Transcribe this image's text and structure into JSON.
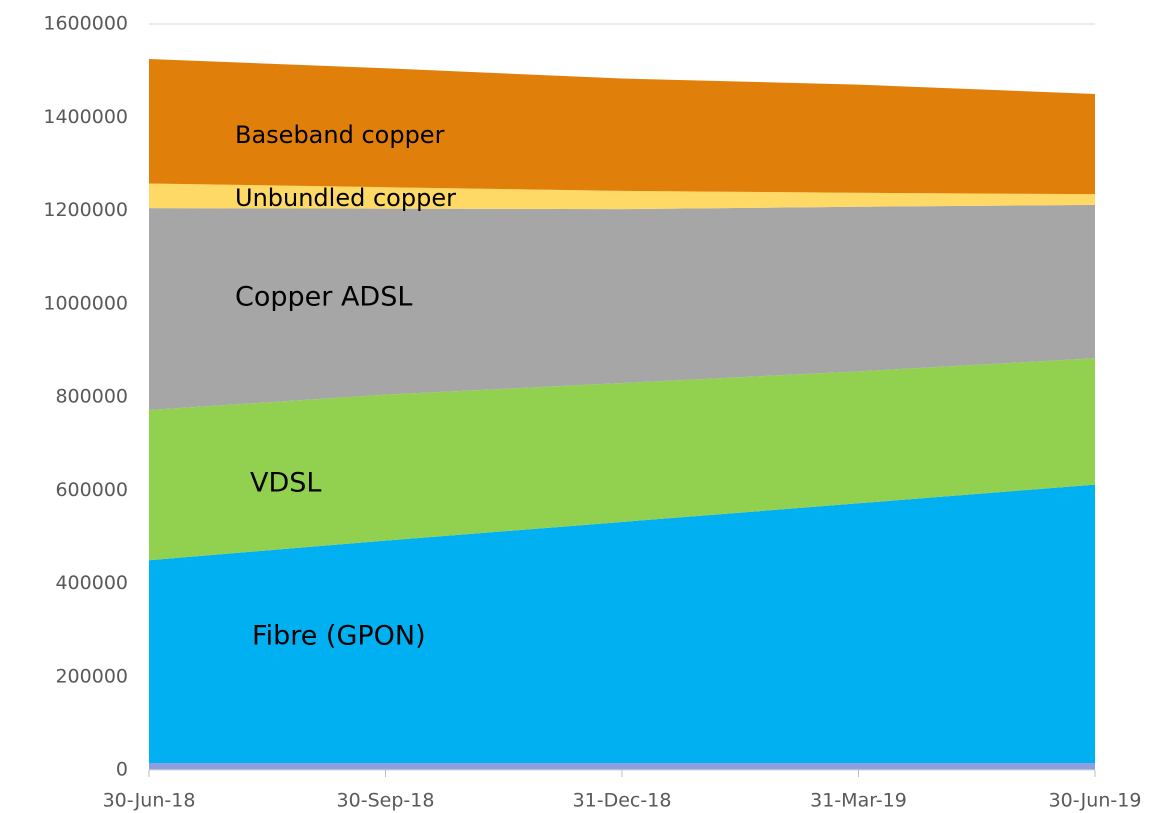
{
  "chart_data": {
    "type": "stacked_area",
    "categories": [
      "30-Jun-18",
      "30-Sep-18",
      "31-Dec-18",
      "31-Mar-19",
      "30-Jun-19"
    ],
    "series": [
      {
        "color": "#8e9fe0",
        "values": [
          15000,
          15000,
          15000,
          15000,
          15000
        ]
      },
      {
        "name": "Fibre (GPON)",
        "color": "#00b0f0",
        "values": [
          435000,
          477000,
          517000,
          557000,
          597000
        ]
      },
      {
        "name": "VDSL",
        "color": "#92d050",
        "values": [
          322000,
          313000,
          298000,
          283000,
          271000
        ]
      },
      {
        "name": "Copper ADSL",
        "color": "#a6a6a6",
        "values": [
          433000,
          399000,
          373000,
          353000,
          329000
        ]
      },
      {
        "name": "Unbundled copper",
        "color": "#ffd966",
        "values": [
          53000,
          46000,
          39000,
          30000,
          23000
        ]
      },
      {
        "name": "Baseband copper",
        "color": "#e0800a",
        "values": [
          267000,
          255000,
          241000,
          232000,
          215000
        ]
      }
    ],
    "ylim": [
      0,
      1600000
    ],
    "yticks": [
      0,
      200000,
      400000,
      600000,
      800000,
      1000000,
      1200000,
      1400000,
      1600000
    ],
    "grid": true
  }
}
